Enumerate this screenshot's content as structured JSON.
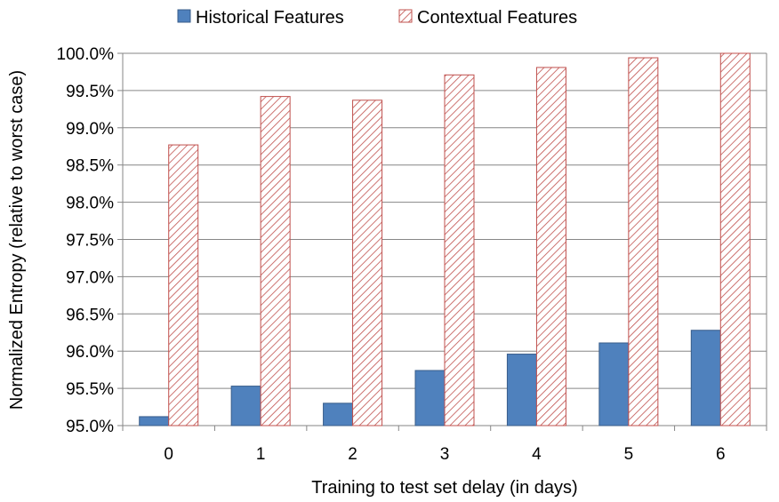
{
  "chart_data": {
    "type": "bar",
    "title": "",
    "xlabel": "Training to test set delay (in days)",
    "ylabel": "Normalized Entropy (relative to worst case)",
    "categories": [
      "0",
      "1",
      "2",
      "3",
      "4",
      "5",
      "6"
    ],
    "series": [
      {
        "name": "Historical Features",
        "values": [
          95.12,
          95.53,
          95.3,
          95.74,
          95.96,
          96.11,
          96.28
        ],
        "color": "#4f81bd",
        "pattern": "solid"
      },
      {
        "name": "Contextual Features",
        "values": [
          98.77,
          99.42,
          99.37,
          99.71,
          99.81,
          99.94,
          100.0
        ],
        "color": "#c0504d",
        "pattern": "diagonal-hatch"
      }
    ],
    "ylim": [
      95.0,
      100.0
    ],
    "yticks": [
      95.0,
      95.5,
      96.0,
      96.5,
      97.0,
      97.5,
      98.0,
      98.5,
      99.0,
      99.5,
      100.0
    ],
    "ytick_labels": [
      "95.0%",
      "95.5%",
      "96.0%",
      "96.5%",
      "97.0%",
      "97.5%",
      "98.0%",
      "98.5%",
      "99.0%",
      "99.5%",
      "100.0%"
    ],
    "grid": true,
    "legend_position": "top"
  }
}
